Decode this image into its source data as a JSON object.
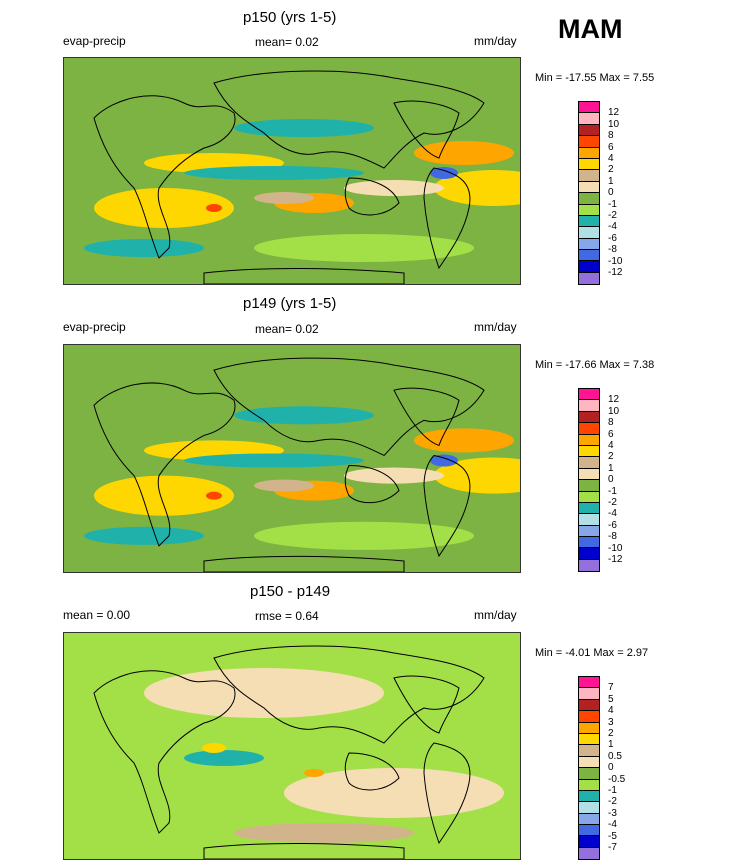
{
  "season": "MAM",
  "panels": [
    {
      "title": "p150 (yrs 1-5)",
      "left_label": "evap-precip",
      "center_label": "mean=  0.02",
      "right_label": "mm/day",
      "min_max": "Min = -17.55 Max =   7.55",
      "levels": [
        "12",
        "10",
        "8",
        "6",
        "4",
        "2",
        "1",
        "0",
        "-1",
        "-2",
        "-4",
        "-6",
        "-8",
        "-10",
        "-12"
      ],
      "colors": [
        "#ff1493",
        "#ffb6c1",
        "#b22222",
        "#ff4500",
        "#ffa500",
        "#ffd700",
        "#d2b48c",
        "#f5deb3",
        "#7cb342",
        "#a3e048",
        "#20b2aa",
        "#b0e0e6",
        "#87a8e8",
        "#4169e1",
        "#0000cd",
        "#9370db"
      ]
    },
    {
      "title": "p149 (yrs 1-5)",
      "left_label": "evap-precip",
      "center_label": "mean=  0.02",
      "right_label": "mm/day",
      "min_max": "Min = -17.66 Max =   7.38",
      "levels": [
        "12",
        "10",
        "8",
        "6",
        "4",
        "2",
        "1",
        "0",
        "-1",
        "-2",
        "-4",
        "-6",
        "-8",
        "-10",
        "-12"
      ],
      "colors": [
        "#ff1493",
        "#ffb6c1",
        "#b22222",
        "#ff4500",
        "#ffa500",
        "#ffd700",
        "#d2b48c",
        "#f5deb3",
        "#7cb342",
        "#a3e048",
        "#20b2aa",
        "#b0e0e6",
        "#87a8e8",
        "#4169e1",
        "#0000cd",
        "#9370db"
      ]
    },
    {
      "title": "p150 - p149",
      "left_label": "mean =   0.00",
      "center_label": "rmse =   0.64",
      "right_label": "mm/day",
      "min_max": "Min =  -4.01 Max =   2.97",
      "levels": [
        "7",
        "5",
        "4",
        "3",
        "2",
        "1",
        "0.5",
        "0",
        "-0.5",
        "-1",
        "-2",
        "-3",
        "-4",
        "-5",
        "-7"
      ],
      "colors": [
        "#ff1493",
        "#ffb6c1",
        "#b22222",
        "#ff4500",
        "#ffa500",
        "#ffd700",
        "#d2b48c",
        "#f5deb3",
        "#7cb342",
        "#a3e048",
        "#20b2aa",
        "#b0e0e6",
        "#87a8e8",
        "#4169e1",
        "#0000cd",
        "#9370db"
      ]
    }
  ]
}
